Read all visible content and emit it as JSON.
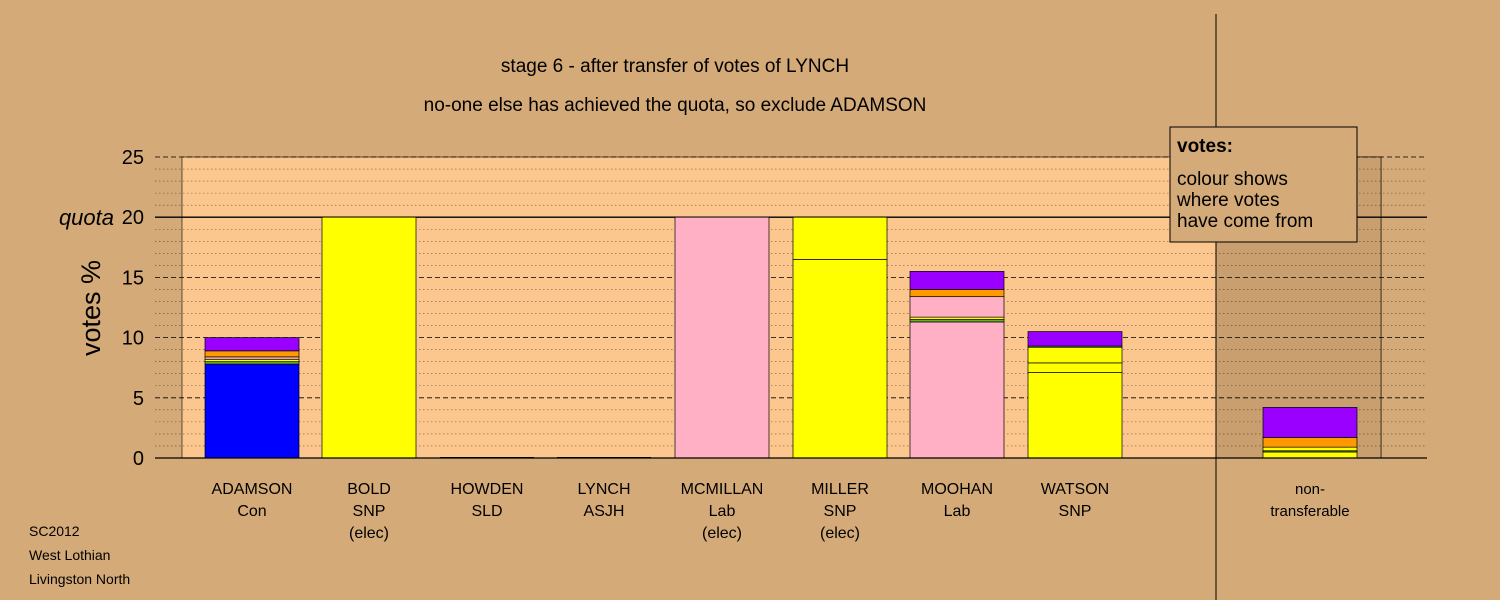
{
  "colors": {
    "background": "#d4aa78",
    "plot_area": "#fcc78e",
    "shade": "#c99f6f",
    "Con": "#0000ff",
    "SNP": "#ffff00",
    "Lab": "#ffb0c4",
    "LD": "#ff9900",
    "Other": "#9900ff",
    "Green": "#66aa33"
  },
  "chart_data": {
    "type": "bar",
    "stacked": true,
    "title": "stage 6 - after transfer of votes of LYNCH",
    "subtitle": "no-one else has achieved the quota, so exclude ADAMSON",
    "xlabel": "",
    "ylabel": "votes %",
    "ylim": [
      0,
      25
    ],
    "yticks": [
      0,
      5,
      10,
      15,
      20,
      25
    ],
    "quota": 20,
    "quota_label": "quota",
    "grid": true,
    "categories": [
      {
        "name": "ADAMSON",
        "party": "Con",
        "note": ""
      },
      {
        "name": "BOLD",
        "party": "SNP",
        "note": "(elec)"
      },
      {
        "name": "HOWDEN",
        "party": "SLD",
        "note": ""
      },
      {
        "name": "LYNCH",
        "party": "ASJH",
        "note": ""
      },
      {
        "name": "MCMILLAN",
        "party": "Lab",
        "note": "(elec)"
      },
      {
        "name": "MILLER",
        "party": "SNP",
        "note": "(elec)"
      },
      {
        "name": "MOOHAN",
        "party": "Lab",
        "note": ""
      },
      {
        "name": "WATSON",
        "party": "SNP",
        "note": ""
      },
      {
        "name": "non-",
        "party": "transferable",
        "note": ""
      }
    ],
    "stacks": [
      [
        {
          "source": "Con",
          "value": 7.8
        },
        {
          "source": "Green",
          "value": 0.2
        },
        {
          "source": "SNP",
          "value": 0.2
        },
        {
          "source": "Lab",
          "value": 0.2
        },
        {
          "source": "LD",
          "value": 0.5
        },
        {
          "source": "Other",
          "value": 1.1
        }
      ],
      [
        {
          "source": "SNP",
          "value": 20.0
        }
      ],
      [],
      [],
      [
        {
          "source": "Lab",
          "value": 20.0
        }
      ],
      [
        {
          "source": "SNP",
          "value": 16.5
        },
        {
          "source": "SNP",
          "value": 3.5
        }
      ],
      [
        {
          "source": "Lab",
          "value": 11.3
        },
        {
          "source": "Green",
          "value": 0.2
        },
        {
          "source": "SNP",
          "value": 0.2
        },
        {
          "source": "Lab",
          "value": 1.7
        },
        {
          "source": "LD",
          "value": 0.6
        },
        {
          "source": "Other",
          "value": 1.5
        }
      ],
      [
        {
          "source": "SNP",
          "value": 7.1
        },
        {
          "source": "SNP",
          "value": 0.8
        },
        {
          "source": "SNP",
          "value": 1.3
        },
        {
          "source": "Green",
          "value": 0.1
        },
        {
          "source": "Other",
          "value": 1.2
        }
      ],
      [
        {
          "source": "SNP",
          "value": 0.5
        },
        {
          "source": "Green",
          "value": 0.1
        },
        {
          "source": "SNP",
          "value": 0.3
        },
        {
          "source": "LD",
          "value": 0.8
        },
        {
          "source": "Other",
          "value": 2.5
        }
      ]
    ],
    "legend": {
      "title": "votes:",
      "lines": [
        "colour shows",
        "where votes",
        "have come from"
      ],
      "placement": "top-right"
    }
  },
  "footer": {
    "lines": [
      "SC2012",
      "West Lothian",
      "Livingston North"
    ]
  }
}
